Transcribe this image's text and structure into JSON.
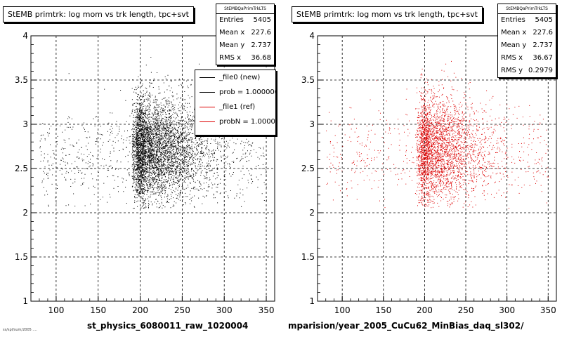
{
  "colors": {
    "new": "#000000",
    "ref": "#dd0000",
    "grid": "#000000",
    "background": "#ffffff"
  },
  "chart_data": [
    {
      "type": "scatter",
      "title": "StEMB primtrk: log mom vs trk length, tpc+svt",
      "xlabel": "st_physics_6080011_raw_1020004",
      "ylabel": "",
      "xlim": [
        70,
        360
      ],
      "ylim": [
        1,
        4
      ],
      "xticks": [
        "100",
        "150",
        "200",
        "250",
        "300",
        "350"
      ],
      "yticks": [
        "1",
        "1.5",
        "2",
        "2.5",
        "3",
        "3.5",
        "4"
      ],
      "grid": true,
      "marker_color": "#000000",
      "points_approx": 5405,
      "density_center": {
        "x": 230,
        "y": 2.75
      },
      "stats": {
        "header": "StEMBQaPrimTrkLTS",
        "rows": [
          {
            "label": "Entries",
            "value": "5405"
          },
          {
            "label": "Mean x",
            "value": "227.6"
          },
          {
            "label": "Mean y",
            "value": "2.737"
          },
          {
            "label": "RMS x",
            "value": "36.68"
          }
        ]
      },
      "legend": [
        {
          "text": "_file0 (new)",
          "color": "#000000"
        },
        {
          "text": "prob = 1.000000",
          "color": "#000000"
        },
        {
          "text": "_file1 (ref)",
          "color": "#dd0000"
        },
        {
          "text": "probN = 1.000000",
          "color": "#dd0000"
        }
      ]
    },
    {
      "type": "scatter",
      "title": "StEMB primtrk: log mom vs trk length, tpc+svt",
      "xlabel": "mparision/year_2005_CuCu62_MinBias_daq_sl302/",
      "ylabel": "",
      "xlim": [
        70,
        360
      ],
      "ylim": [
        1,
        4
      ],
      "xticks": [
        "100",
        "150",
        "200",
        "250",
        "300",
        "350"
      ],
      "yticks": [
        "1",
        "1.5",
        "2",
        "2.5",
        "3",
        "3.5",
        "4"
      ],
      "grid": true,
      "marker_color": "#dd0000",
      "points_approx": 3600,
      "density_center": {
        "x": 230,
        "y": 2.75
      },
      "stats": {
        "header": "StEMBQaPrimTrkLTS",
        "rows": [
          {
            "label": "Entries",
            "value": "5405"
          },
          {
            "label": "Mean x",
            "value": "227.6"
          },
          {
            "label": "Mean y",
            "value": "2.737"
          },
          {
            "label": "RMS x",
            "value": "36.67"
          },
          {
            "label": "RMS y",
            "value": "0.2979"
          }
        ]
      }
    }
  ],
  "footer": "ss/spl/sum/2005 ...."
}
